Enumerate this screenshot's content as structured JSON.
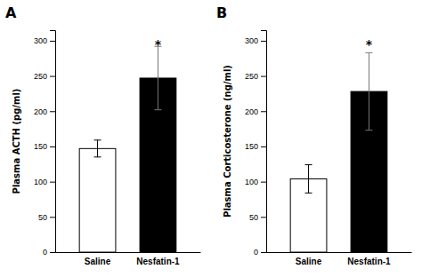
{
  "chart_data": [
    {
      "type": "bar",
      "title": "A",
      "categories": [
        "Saline",
        "Nesfatin-1"
      ],
      "values": [
        147,
        247
      ],
      "errors": [
        12,
        45
      ],
      "colors": [
        "#ffffff",
        "#000000"
      ],
      "y_label": "Plasma ACTH (pg/ml)",
      "ylim": [
        0,
        315
      ],
      "yticks": [
        0,
        50,
        100,
        150,
        200,
        250,
        300
      ],
      "grid": false,
      "annotations": [
        {
          "text": "*",
          "category": "Nesfatin-1",
          "y": 298
        }
      ]
    },
    {
      "type": "bar",
      "title": "B",
      "categories": [
        "Saline",
        "Nesfatin-1"
      ],
      "values": [
        104,
        228
      ],
      "errors": [
        20,
        55
      ],
      "colors": [
        "#ffffff",
        "#000000"
      ],
      "y_label": "Plasma Corticosterone (ng/ml)",
      "ylim": [
        0,
        315
      ],
      "yticks": [
        0,
        50,
        100,
        150,
        200,
        250,
        300
      ],
      "grid": false,
      "annotations": [
        {
          "text": "*",
          "category": "Nesfatin-1",
          "y": 298
        }
      ]
    }
  ]
}
